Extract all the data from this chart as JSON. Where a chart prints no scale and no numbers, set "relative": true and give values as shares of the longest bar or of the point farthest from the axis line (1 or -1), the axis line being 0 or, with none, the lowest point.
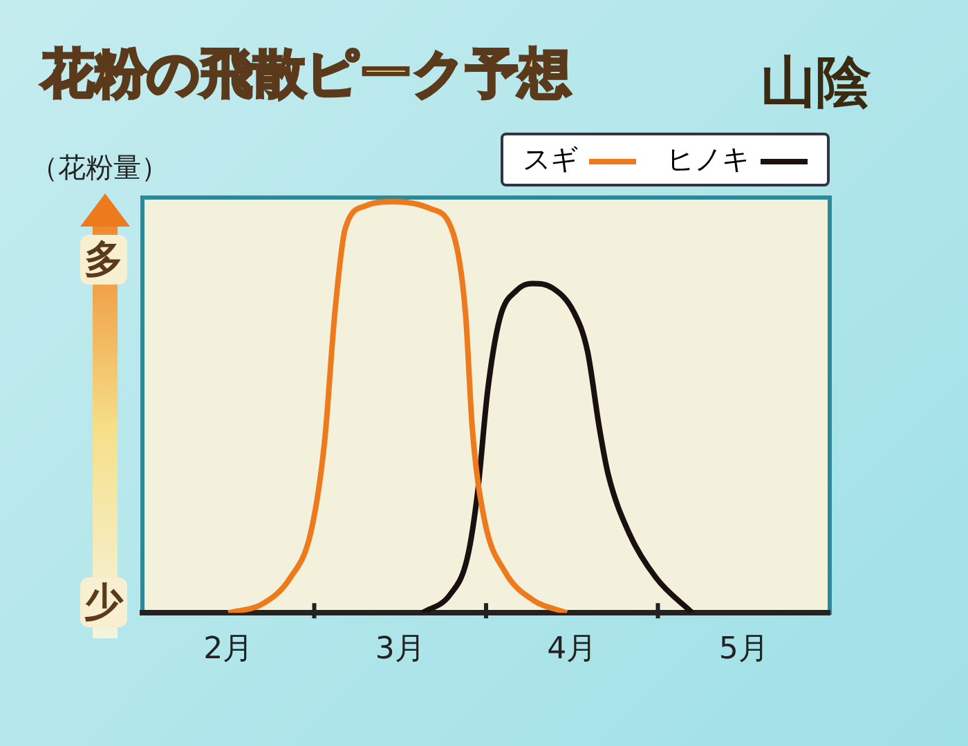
{
  "chart_data": {
    "type": "line",
    "title": "花粉の飛散ピーク予想",
    "subtitle": "山陰",
    "ylabel": "（花粉量）",
    "annotations": [
      "多",
      "少"
    ],
    "relative": true,
    "legend": "top right",
    "marker": "none",
    "line_style": "solid",
    "grid": false,
    "xlim": [
      1.5,
      5.5
    ],
    "xticks": [
      {
        "value": 2,
        "label": "2月"
      },
      {
        "value": 2.5,
        "label": null
      },
      {
        "value": 3,
        "label": "3月"
      },
      {
        "value": 3.5,
        "label": null
      },
      {
        "value": 4,
        "label": "4月"
      },
      {
        "value": 4.5,
        "label": null
      },
      {
        "value": 5,
        "label": "5月"
      }
    ],
    "series": [
      {
        "name": "スギ",
        "color": "#ee7a1e",
        "x": [
          2.0,
          2.2,
          2.36,
          2.48,
          2.56,
          2.62,
          2.68,
          2.8,
          2.96,
          3.17,
          3.31,
          3.38,
          3.42,
          3.49,
          3.61,
          3.77,
          3.97
        ],
        "values": [
          0,
          0.022,
          0.085,
          0.196,
          0.416,
          0.73,
          0.934,
          0.99,
          1,
          0.984,
          0.921,
          0.73,
          0.448,
          0.227,
          0.1,
          0.032,
          0
        ]
      },
      {
        "name": "ヒノキ",
        "color": "#1a1010",
        "x": [
          3.13,
          3.29,
          3.39,
          3.45,
          3.51,
          3.58,
          3.68,
          3.77,
          3.89,
          4.01,
          4.09,
          4.16,
          4.21,
          4.33,
          4.49,
          4.7
        ],
        "values": [
          0,
          0.044,
          0.132,
          0.29,
          0.543,
          0.716,
          0.785,
          0.801,
          0.789,
          0.732,
          0.637,
          0.448,
          0.338,
          0.196,
          0.085,
          0
        ]
      }
    ]
  }
}
